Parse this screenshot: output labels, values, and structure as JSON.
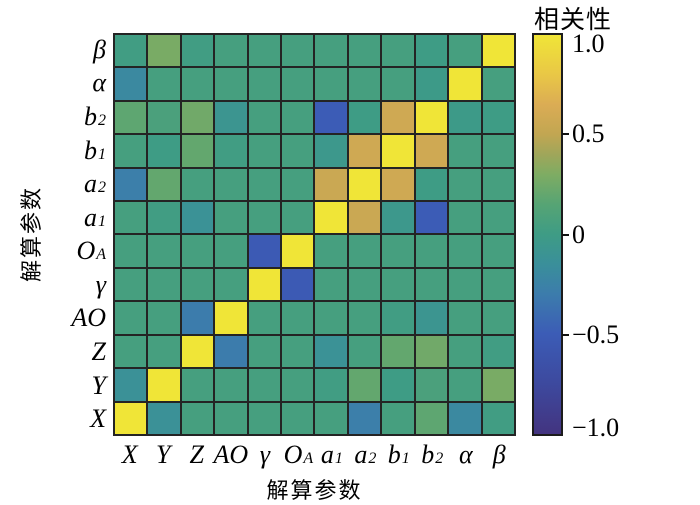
{
  "figure": {
    "background": "#ffffff",
    "grid_line_color": "#242424"
  },
  "chart_data": {
    "type": "heatmap",
    "title": "",
    "xlabel": "解算参数",
    "ylabel": "解算参数",
    "x_categories": [
      "X",
      "Y",
      "Z",
      "AO",
      "γ",
      "O_A",
      "a_1",
      "a_2",
      "b_1",
      "b_2",
      "α",
      "β"
    ],
    "y_categories_top_to_bottom": [
      "β",
      "α",
      "b_2",
      "b_1",
      "a_2",
      "a_1",
      "O_A",
      "γ",
      "AO",
      "Z",
      "Y",
      "X"
    ],
    "value_range": [
      -1.0,
      1.0
    ],
    "matrix_rows_top_to_bottom": [
      [
        0.02,
        0.28,
        0.02,
        0.05,
        0.05,
        0.05,
        0.05,
        0.05,
        0.05,
        0.0,
        0.05,
        1.0
      ],
      [
        -0.2,
        0.05,
        0.05,
        0.05,
        0.05,
        0.05,
        0.05,
        0.05,
        0.05,
        -0.02,
        1.0,
        0.05
      ],
      [
        0.18,
        0.08,
        0.25,
        -0.08,
        0.05,
        0.05,
        -0.5,
        0.0,
        0.58,
        1.0,
        -0.02,
        0.0
      ],
      [
        0.05,
        0.0,
        0.2,
        0.02,
        0.05,
        0.05,
        -0.05,
        0.58,
        1.0,
        0.58,
        0.05,
        0.05
      ],
      [
        -0.28,
        0.2,
        0.05,
        0.05,
        0.05,
        0.05,
        0.55,
        1.0,
        0.58,
        0.0,
        0.05,
        0.05
      ],
      [
        0.05,
        0.02,
        -0.12,
        0.05,
        0.05,
        0.05,
        1.0,
        0.55,
        -0.05,
        -0.5,
        0.05,
        0.05
      ],
      [
        0.05,
        0.05,
        0.05,
        0.05,
        -0.52,
        1.0,
        0.05,
        0.05,
        0.05,
        0.05,
        0.05,
        0.05
      ],
      [
        0.05,
        0.05,
        0.05,
        0.05,
        1.0,
        -0.52,
        0.05,
        0.05,
        0.05,
        0.05,
        0.05,
        0.05
      ],
      [
        0.05,
        0.05,
        -0.3,
        1.0,
        0.05,
        0.05,
        0.05,
        0.05,
        0.02,
        -0.08,
        0.05,
        0.05
      ],
      [
        0.05,
        0.05,
        1.0,
        -0.3,
        0.05,
        0.05,
        -0.12,
        0.05,
        0.2,
        0.25,
        0.05,
        0.02
      ],
      [
        -0.13,
        1.0,
        0.05,
        0.05,
        0.05,
        0.05,
        0.02,
        0.2,
        0.0,
        0.08,
        0.05,
        0.28
      ],
      [
        1.0,
        -0.13,
        0.05,
        0.05,
        0.05,
        0.05,
        0.05,
        -0.28,
        0.05,
        0.18,
        -0.2,
        0.02
      ]
    ],
    "colorbar": {
      "title": "相关性",
      "ticks": [
        {
          "value": 1.0,
          "label": "1.0",
          "dash": false
        },
        {
          "value": 0.5,
          "label": "0.5",
          "dash": true
        },
        {
          "value": 0.0,
          "label": "0",
          "dash": true
        },
        {
          "value": -0.5,
          "label": "−0.5",
          "dash": true
        },
        {
          "value": -1.0,
          "label": "−1.0",
          "dash": false
        }
      ],
      "gradient_stops": [
        {
          "t": -1.0,
          "color": "#433480"
        },
        {
          "t": -0.75,
          "color": "#3D499E"
        },
        {
          "t": -0.5,
          "color": "#3C5CB6"
        },
        {
          "t": -0.3,
          "color": "#3C7CAC"
        },
        {
          "t": -0.15,
          "color": "#3A8F9A"
        },
        {
          "t": 0.0,
          "color": "#3E9C85"
        },
        {
          "t": 0.15,
          "color": "#56A474"
        },
        {
          "t": 0.3,
          "color": "#7EAC63"
        },
        {
          "t": 0.4,
          "color": "#9FA65A"
        },
        {
          "t": 0.5,
          "color": "#C1A652"
        },
        {
          "t": 0.65,
          "color": "#DBAC54"
        },
        {
          "t": 0.8,
          "color": "#E9C746"
        },
        {
          "t": 1.0,
          "color": "#F0E537"
        }
      ]
    }
  }
}
